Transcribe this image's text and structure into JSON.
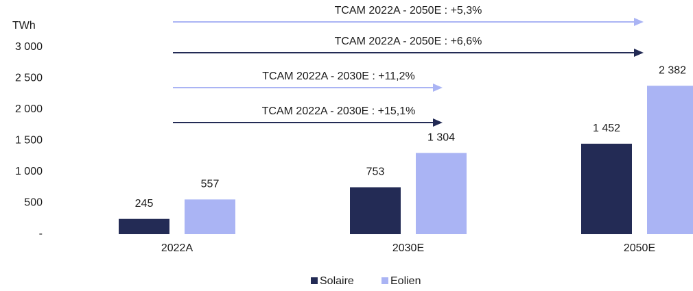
{
  "chart_data": {
    "type": "bar",
    "y_label": "TWh",
    "categories": [
      "2022A",
      "2030E",
      "2050E"
    ],
    "series": [
      {
        "name": "Solaire",
        "color": "#232b55",
        "label_color": "#1a1a1a",
        "values": [
          245,
          753,
          1452
        ],
        "value_labels": [
          "245",
          "753",
          "1 452"
        ]
      },
      {
        "name": "Eolien",
        "color": "#aab4f4",
        "label_color": "#6f7bcf",
        "values": [
          557,
          1304,
          2382
        ],
        "value_labels": [
          "557",
          "1 304",
          "2 382"
        ]
      }
    ],
    "ylim": [
      0,
      3000
    ],
    "yticks": [
      {
        "value": 0,
        "label": "-"
      },
      500,
      {
        "value": 1000,
        "label": "1 000"
      },
      {
        "value": 1500,
        "label": "1 500"
      },
      {
        "value": 2000,
        "label": "2 000"
      },
      {
        "value": 2500,
        "label": "2 500"
      },
      {
        "value": 3000,
        "label": "3 000"
      }
    ],
    "grid": false,
    "legend": "bottom",
    "annotations": [
      {
        "text": "TCAM 2022A - 2050E : +5,3%",
        "color": "#aab4f4",
        "text_color": "#7f8bd6"
      },
      {
        "text": "TCAM 2022A - 2050E : +6,6%",
        "color": "#232b55",
        "text_color": "#1a1a1a"
      },
      {
        "text": "TCAM 2022A - 2030E : +11,2%",
        "color": "#aab4f4",
        "text_color": "#7f8bd6"
      },
      {
        "text": "TCAM 2022A - 2030E : +15,1%",
        "color": "#232b55",
        "text_color": "#1a1a1a"
      }
    ]
  }
}
